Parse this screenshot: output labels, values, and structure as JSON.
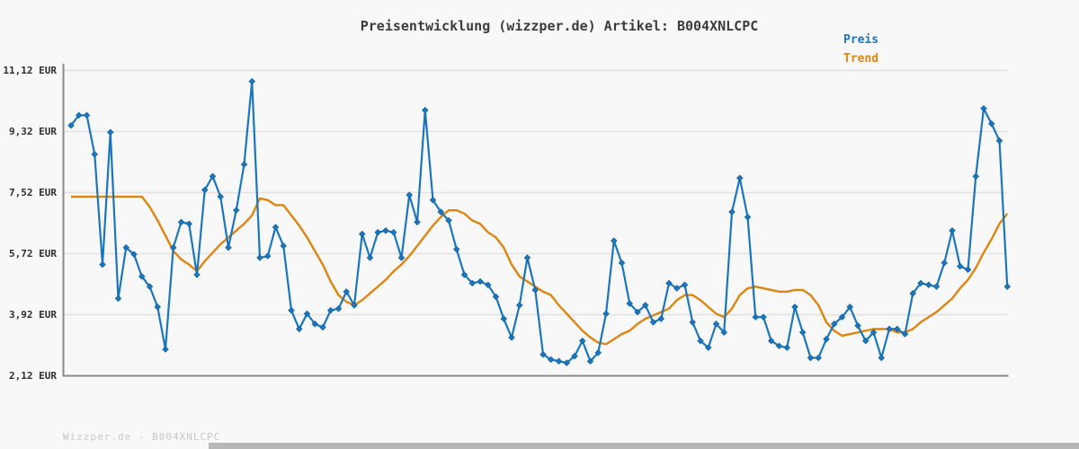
{
  "title": "Preisentwicklung (wizzper.de) Artikel: B004XNLCPC",
  "legend": {
    "items": [
      {
        "label": "Preis",
        "color": "#1b76bd"
      },
      {
        "label": "Trend",
        "color": "#de850f"
      }
    ]
  },
  "footer": {
    "watermark": "Wizzper.de - B004XNLCPC"
  },
  "colors": {
    "background": "#f8f8f8",
    "axis": "#8a8a8a",
    "grid": "#e2e2e2",
    "preis": "#1b76bd",
    "preis_marker_edge": "#1465a0",
    "trend": "#de850f",
    "title_text": "#3c3c3c",
    "tick_text": "#2e2e2e",
    "watermark_text": "#c8c8c8",
    "scrollbar": "#b8b8b8"
  },
  "chart_data": {
    "type": "line",
    "title": "Preisentwicklung (wizzper.de) Artikel: B004XNLCPC",
    "currency": "EUR",
    "grid": "horizontal",
    "legend_position": "top-right",
    "x_axis_labels": "none",
    "ylim": [
      2.12,
      11.3
    ],
    "y_ticks": [
      {
        "value": 11.12,
        "label": "11,12 EUR"
      },
      {
        "value": 9.32,
        "label": "9,32 EUR"
      },
      {
        "value": 7.52,
        "label": "7,52 EUR"
      },
      {
        "value": 5.72,
        "label": "5,72 EUR"
      },
      {
        "value": 3.92,
        "label": "3,92 EUR"
      },
      {
        "value": 2.12,
        "label": "2,12 EUR"
      }
    ],
    "series": [
      {
        "name": "Preis",
        "color": "#1b76bd",
        "marker": "diamond",
        "values": [
          9.5,
          9.8,
          9.8,
          8.65,
          5.4,
          9.3,
          4.4,
          5.9,
          5.7,
          5.05,
          4.75,
          4.15,
          2.9,
          5.9,
          6.65,
          6.6,
          5.1,
          7.6,
          8.0,
          7.4,
          5.9,
          7.0,
          8.35,
          10.8,
          5.6,
          5.65,
          6.5,
          5.95,
          4.05,
          3.5,
          3.95,
          3.65,
          3.55,
          4.05,
          4.1,
          4.6,
          4.2,
          6.3,
          5.6,
          6.35,
          6.4,
          6.35,
          5.6,
          7.45,
          6.65,
          9.95,
          7.3,
          6.95,
          6.7,
          5.85,
          5.1,
          4.85,
          4.9,
          4.8,
          4.45,
          3.8,
          3.25,
          4.2,
          5.6,
          4.65,
          2.75,
          2.6,
          2.55,
          2.5,
          2.7,
          3.15,
          2.55,
          2.8,
          3.95,
          6.1,
          5.45,
          4.25,
          4.0,
          4.2,
          3.7,
          3.8,
          4.85,
          4.7,
          4.8,
          3.7,
          3.15,
          2.95,
          3.65,
          3.4,
          6.95,
          7.95,
          6.8,
          3.85,
          3.85,
          3.15,
          3.0,
          2.95,
          4.15,
          3.4,
          2.65,
          2.65,
          3.2,
          3.65,
          3.85,
          4.15,
          3.6,
          3.15,
          3.4,
          2.65,
          3.5,
          3.5,
          3.35,
          4.55,
          4.85,
          4.8,
          4.75,
          5.45,
          6.4,
          5.35,
          5.25,
          8.0,
          10.0,
          9.55,
          9.05,
          4.75
        ]
      },
      {
        "name": "Trend",
        "color": "#de850f",
        "marker": "none",
        "values": [
          7.4,
          7.4,
          7.4,
          7.4,
          7.4,
          7.4,
          7.4,
          7.4,
          7.4,
          7.4,
          7.1,
          6.7,
          6.25,
          5.8,
          5.55,
          5.4,
          5.2,
          5.5,
          5.75,
          6.0,
          6.2,
          6.4,
          6.6,
          6.85,
          7.35,
          7.3,
          7.15,
          7.15,
          6.85,
          6.55,
          6.2,
          5.8,
          5.4,
          4.9,
          4.5,
          4.3,
          4.2,
          4.35,
          4.55,
          4.75,
          4.95,
          5.2,
          5.4,
          5.65,
          5.95,
          6.25,
          6.55,
          6.8,
          7.0,
          7.0,
          6.9,
          6.7,
          6.6,
          6.35,
          6.2,
          5.9,
          5.4,
          5.05,
          4.9,
          4.75,
          4.6,
          4.5,
          4.2,
          3.95,
          3.7,
          3.45,
          3.25,
          3.1,
          3.05,
          3.2,
          3.35,
          3.45,
          3.65,
          3.8,
          3.9,
          4.0,
          4.1,
          4.35,
          4.5,
          4.5,
          4.35,
          4.15,
          3.95,
          3.85,
          4.1,
          4.5,
          4.7,
          4.75,
          4.7,
          4.65,
          4.6,
          4.6,
          4.65,
          4.65,
          4.5,
          4.2,
          3.7,
          3.45,
          3.3,
          3.35,
          3.4,
          3.45,
          3.5,
          3.5,
          3.5,
          3.4,
          3.4,
          3.5,
          3.7,
          3.85,
          4.0,
          4.2,
          4.4,
          4.7,
          4.95,
          5.3,
          5.75,
          6.15,
          6.6,
          6.9
        ]
      }
    ]
  }
}
